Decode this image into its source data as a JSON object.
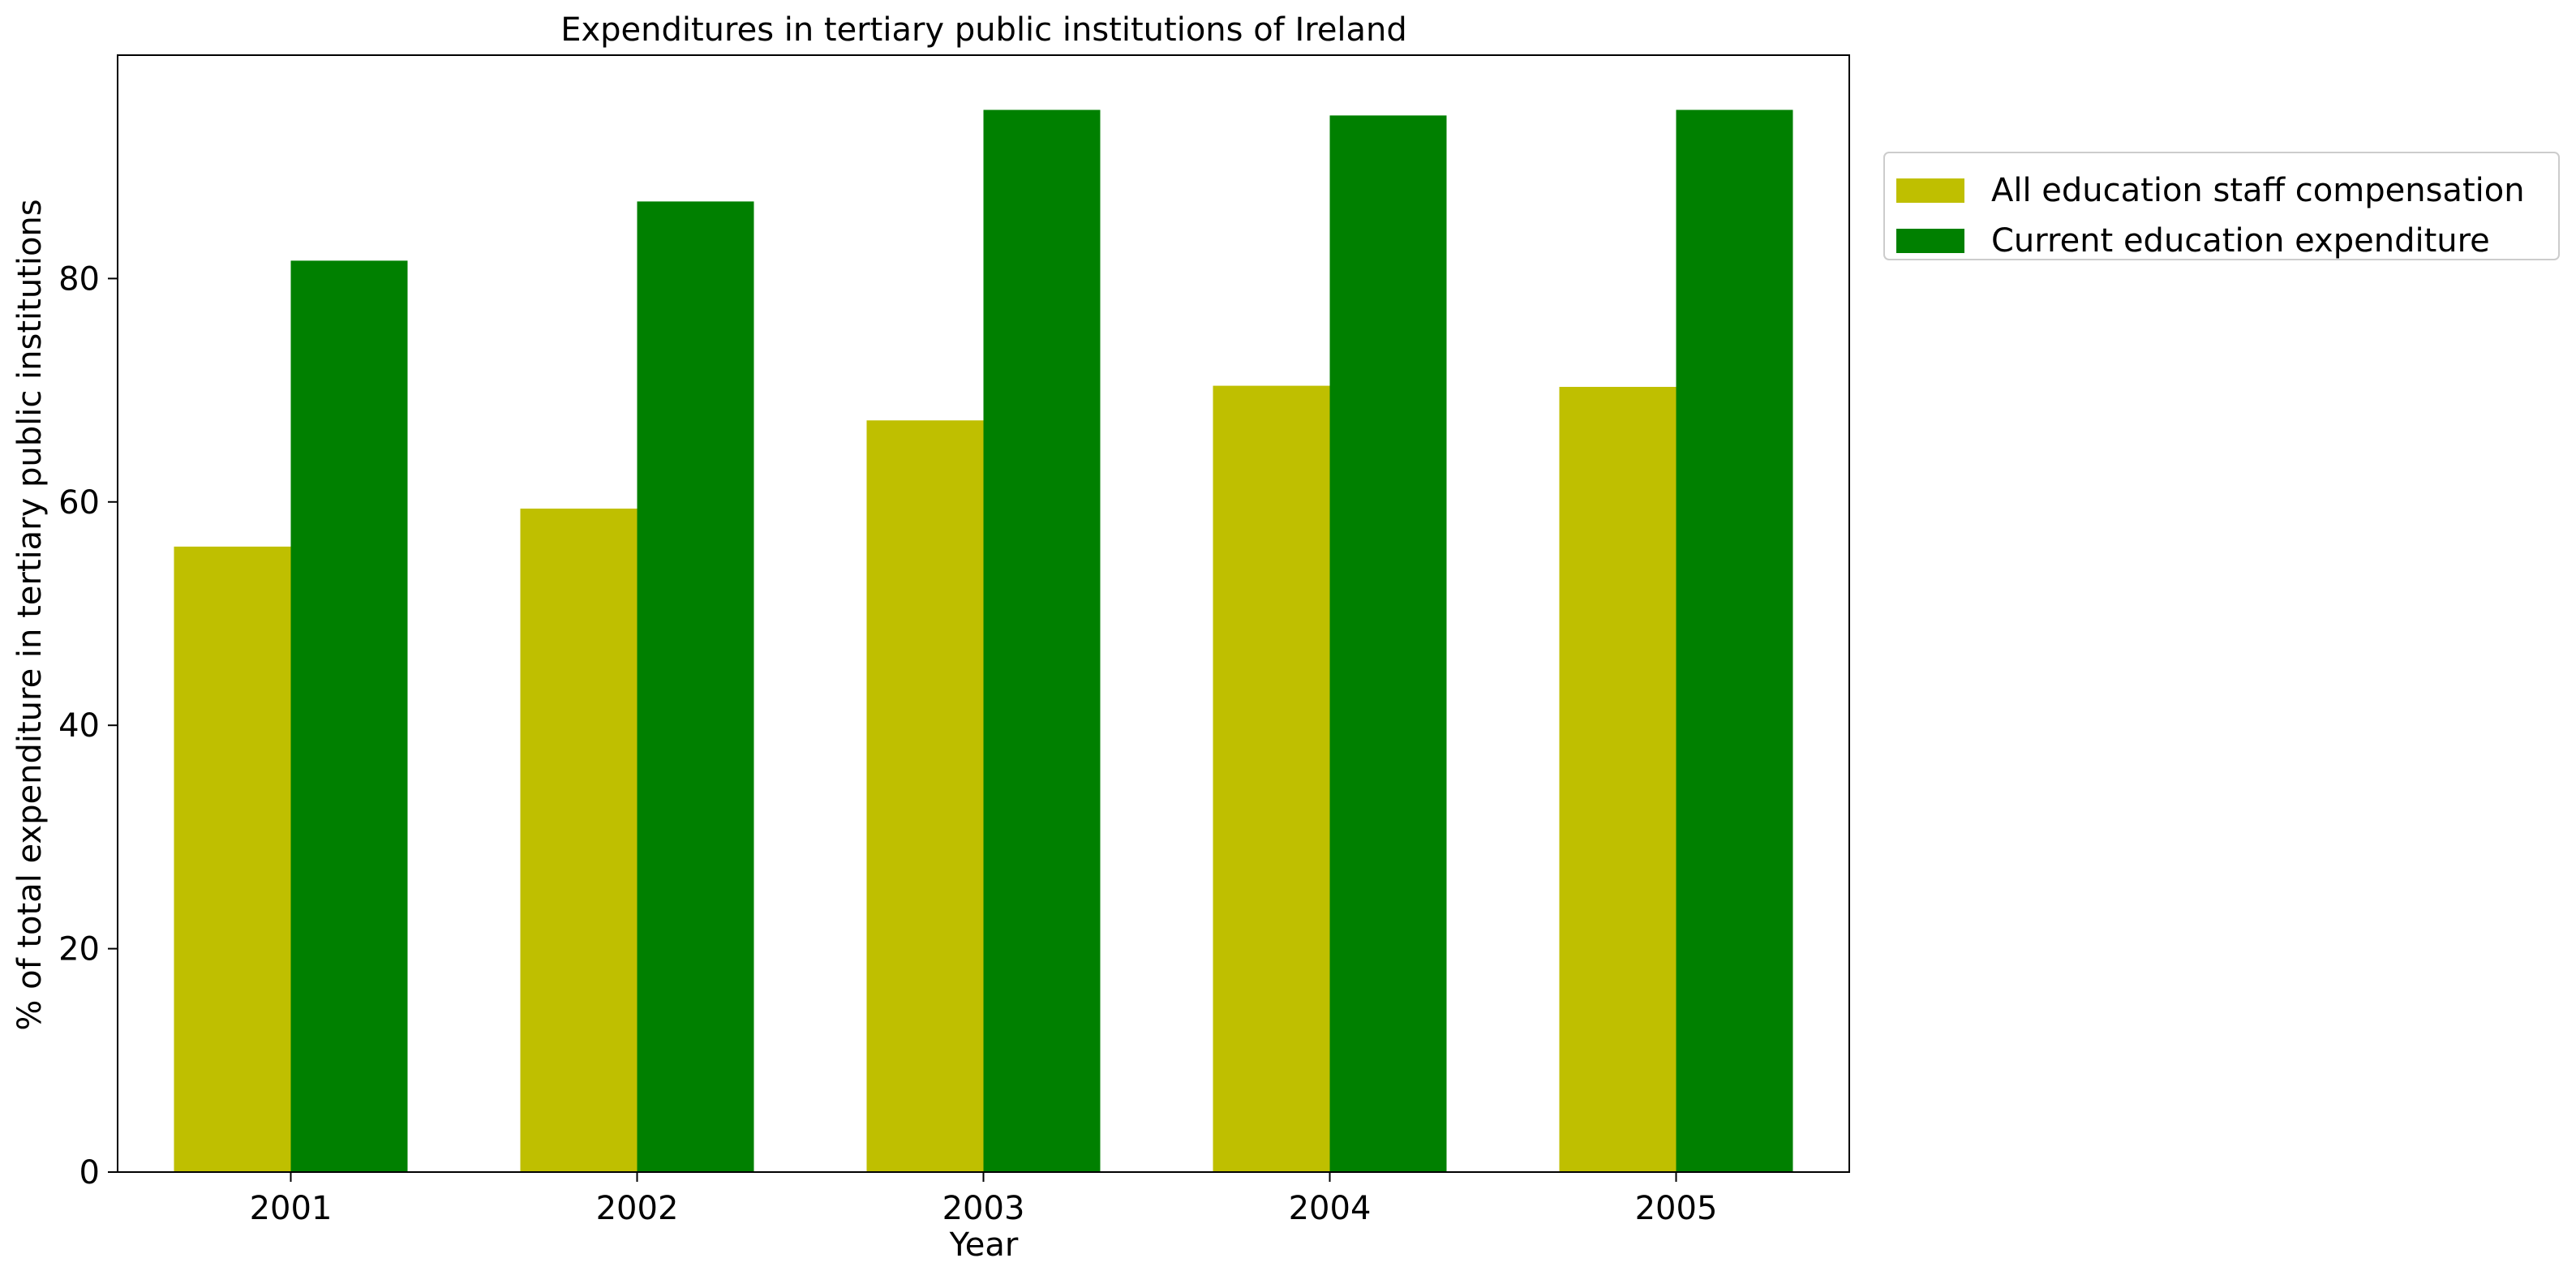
{
  "chart_data": {
    "type": "bar",
    "title": "Expenditures in tertiary public institutions of Ireland",
    "xlabel": "Year",
    "ylabel": "% of total expenditure in tertiary public institutions",
    "categories": [
      "2001",
      "2002",
      "2003",
      "2004",
      "2005"
    ],
    "series": [
      {
        "name": "All education staff compensation",
        "color": "#bfbf00",
        "values": [
          56.0,
          59.4,
          67.3,
          70.4,
          70.3
        ]
      },
      {
        "name": "Current education expenditure",
        "color": "#008000",
        "values": [
          81.6,
          86.9,
          95.1,
          94.6,
          95.1
        ]
      }
    ],
    "ylim": [
      0,
      100
    ],
    "yticks": [
      0,
      20,
      40,
      60,
      80
    ],
    "grid": false,
    "legend_position": "outside-top-right"
  }
}
